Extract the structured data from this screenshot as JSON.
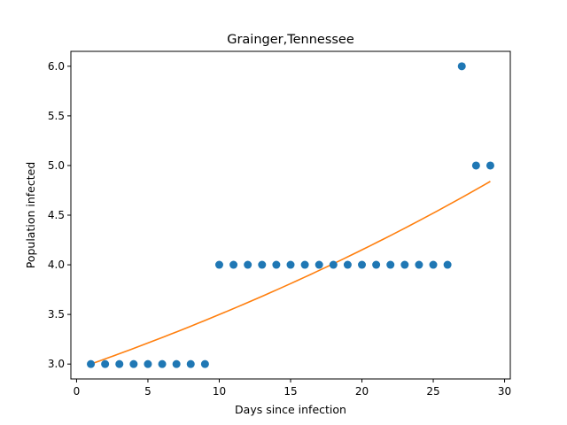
{
  "chart_data": {
    "type": "scatter",
    "title": "Grainger,Tennessee",
    "xlabel": "Days since infection",
    "ylabel": "Population infected",
    "xlim": [
      -0.4,
      30.4
    ],
    "ylim": [
      2.85,
      6.15
    ],
    "xticks": [
      0,
      5,
      10,
      15,
      20,
      25,
      30
    ],
    "yticks": [
      3.0,
      3.5,
      4.0,
      4.5,
      5.0,
      5.5,
      6.0
    ],
    "ytick_labels": [
      "3.0",
      "3.5",
      "4.0",
      "4.5",
      "5.0",
      "5.5",
      "6.0"
    ],
    "grid": false,
    "colors": {
      "points": "#1f77b4",
      "fit": "#ff7f0e"
    },
    "series": [
      {
        "type": "scatter",
        "x": [
          1,
          2,
          3,
          4,
          5,
          6,
          7,
          8,
          9,
          10,
          11,
          12,
          13,
          14,
          15,
          16,
          17,
          18,
          19,
          20,
          21,
          22,
          23,
          24,
          25,
          26,
          27,
          28,
          29
        ],
        "y": [
          3,
          3,
          3,
          3,
          3,
          3,
          3,
          3,
          3,
          4,
          4,
          4,
          4,
          4,
          4,
          4,
          4,
          4,
          4,
          4,
          4,
          4,
          4,
          4,
          4,
          4,
          6,
          5,
          5
        ]
      },
      {
        "type": "line",
        "x": [
          1,
          29
        ],
        "y": [
          3.0,
          4.84
        ]
      }
    ]
  }
}
